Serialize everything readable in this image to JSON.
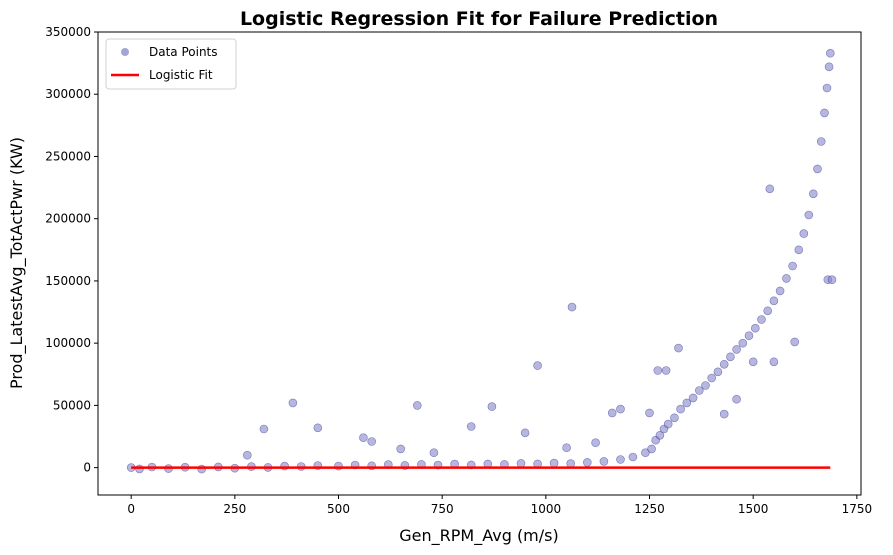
{
  "chart_data": {
    "type": "scatter",
    "title": "Logistic Regression Fit for Failure Prediction",
    "xlabel": "Gen_RPM_Avg (m/s)",
    "ylabel": "Prod_LatestAvg_TotActPwr (KW)",
    "xlim": [
      -80,
      1760
    ],
    "ylim": [
      -22000,
      350000
    ],
    "xticks": [
      0,
      250,
      500,
      750,
      1000,
      1250,
      1500,
      1750
    ],
    "yticks": [
      0,
      50000,
      100000,
      150000,
      200000,
      250000,
      300000,
      350000
    ],
    "grid": false,
    "legend": {
      "position": "top-left",
      "entries": [
        "Data Points",
        "Logistic Fit"
      ]
    },
    "colors": {
      "points_fill": "#8585c8",
      "points_edge": "#1a1a8c",
      "fit_line": "#ff0000"
    },
    "series": [
      {
        "name": "Data Points",
        "kind": "scatter",
        "points": [
          [
            0,
            0
          ],
          [
            20,
            -1000
          ],
          [
            50,
            500
          ],
          [
            90,
            -800
          ],
          [
            130,
            300
          ],
          [
            170,
            -1200
          ],
          [
            210,
            600
          ],
          [
            250,
            -500
          ],
          [
            290,
            800
          ],
          [
            330,
            200
          ],
          [
            370,
            1200
          ],
          [
            410,
            900
          ],
          [
            450,
            1600
          ],
          [
            500,
            1200
          ],
          [
            540,
            2100
          ],
          [
            580,
            1500
          ],
          [
            620,
            2400
          ],
          [
            660,
            1800
          ],
          [
            700,
            2600
          ],
          [
            740,
            2000
          ],
          [
            780,
            2800
          ],
          [
            820,
            2200
          ],
          [
            860,
            3000
          ],
          [
            900,
            2600
          ],
          [
            940,
            3400
          ],
          [
            980,
            3000
          ],
          [
            1020,
            3600
          ],
          [
            1060,
            3200
          ],
          [
            1100,
            4200
          ],
          [
            1140,
            5000
          ],
          [
            1180,
            6500
          ],
          [
            1210,
            8500
          ],
          [
            1240,
            12000
          ],
          [
            1255,
            15000
          ],
          [
            1265,
            22000
          ],
          [
            1275,
            26000
          ],
          [
            1285,
            31000
          ],
          [
            1295,
            35000
          ],
          [
            1310,
            40000
          ],
          [
            1325,
            47000
          ],
          [
            1340,
            52000
          ],
          [
            1355,
            56000
          ],
          [
            1370,
            62000
          ],
          [
            1385,
            66000
          ],
          [
            1400,
            72000
          ],
          [
            1415,
            77000
          ],
          [
            1430,
            83000
          ],
          [
            1445,
            89000
          ],
          [
            1460,
            95000
          ],
          [
            1475,
            100000
          ],
          [
            1490,
            106000
          ],
          [
            1505,
            112000
          ],
          [
            1520,
            119000
          ],
          [
            1535,
            126000
          ],
          [
            1550,
            134000
          ],
          [
            1565,
            142000
          ],
          [
            1580,
            152000
          ],
          [
            1595,
            162000
          ],
          [
            1610,
            175000
          ],
          [
            1622,
            188000
          ],
          [
            1634,
            203000
          ],
          [
            1645,
            220000
          ],
          [
            1655,
            240000
          ],
          [
            1664,
            262000
          ],
          [
            1672,
            285000
          ],
          [
            1678,
            305000
          ],
          [
            1683,
            322000
          ],
          [
            1686,
            333000
          ],
          [
            1680,
            151000
          ],
          [
            1690,
            151000
          ],
          [
            1063,
            129000
          ],
          [
            980,
            82000
          ],
          [
            1320,
            96000
          ],
          [
            1540,
            224000
          ],
          [
            390,
            52000
          ],
          [
            690,
            50000
          ],
          [
            870,
            49000
          ],
          [
            1180,
            47000
          ],
          [
            1160,
            44000
          ],
          [
            1250,
            44000
          ],
          [
            1270,
            78000
          ],
          [
            1290,
            78000
          ],
          [
            320,
            31000
          ],
          [
            450,
            32000
          ],
          [
            560,
            24000
          ],
          [
            580,
            21000
          ],
          [
            820,
            33000
          ],
          [
            950,
            28000
          ],
          [
            1120,
            20000
          ],
          [
            1460,
            55000
          ],
          [
            1500,
            85000
          ],
          [
            1550,
            85000
          ],
          [
            1430,
            43000
          ],
          [
            1600,
            101000
          ],
          [
            650,
            15000
          ],
          [
            730,
            12000
          ],
          [
            280,
            10000
          ],
          [
            1050,
            16000
          ]
        ]
      },
      {
        "name": "Logistic Fit",
        "kind": "line",
        "x": [
          0,
          1686
        ],
        "y": [
          0,
          0
        ]
      }
    ]
  }
}
